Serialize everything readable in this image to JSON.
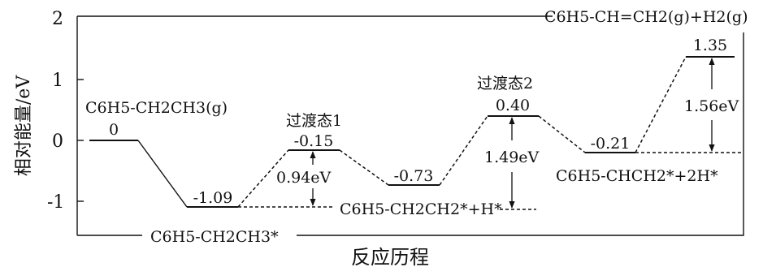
{
  "diagram": {
    "ylabel": "相对能量/eV",
    "xlabel": "反应历程",
    "yticks": [
      "2",
      "1",
      "0",
      "-1"
    ],
    "levels": [
      {
        "value": "0",
        "label": "C6H5-CH2CH3(g)"
      },
      {
        "value": "-1.09",
        "label": "C6H5-CH2CH3*"
      },
      {
        "value": "-0.15",
        "label": "过渡态1"
      },
      {
        "value": "-0.73",
        "label": "C6H5-CH2CH2*+H*"
      },
      {
        "value": "0.40",
        "label": "过渡态2"
      },
      {
        "value": "-0.21",
        "label": "C6H5-CHCH2*+2H*"
      },
      {
        "value": "1.35",
        "label": "C6H5-CH=CH2(g)+H2(g)"
      }
    ],
    "barriers": [
      {
        "label": "0.94eV"
      },
      {
        "label": "1.49eV"
      },
      {
        "label": "1.56eV"
      }
    ]
  }
}
